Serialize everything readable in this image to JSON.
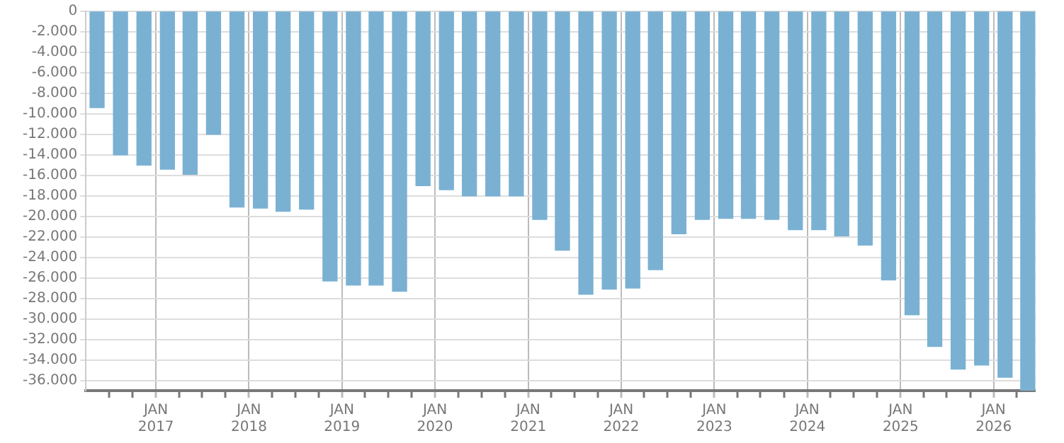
{
  "chart_data": {
    "type": "bar",
    "color": "#7ab1d3",
    "x": [
      "2016-05-15",
      "2016-08-15",
      "2016-11-15",
      "2017-02-15",
      "2017-05-15",
      "2017-08-15",
      "2017-11-15",
      "2018-02-15",
      "2018-05-15",
      "2018-08-15",
      "2018-11-15",
      "2019-02-15",
      "2019-05-15",
      "2019-08-15",
      "2019-11-15",
      "2020-02-15",
      "2020-05-15",
      "2020-08-15",
      "2020-11-15",
      "2021-02-15",
      "2021-05-15",
      "2021-08-15",
      "2021-11-15",
      "2022-02-15",
      "2022-05-15",
      "2022-08-15",
      "2022-11-15",
      "2023-02-15",
      "2023-05-15",
      "2023-08-15",
      "2023-11-15",
      "2024-02-15",
      "2024-05-15",
      "2024-08-15",
      "2024-11-15",
      "2025-02-15",
      "2025-05-15",
      "2025-08-15",
      "2025-11-15",
      "2026-02-15",
      "2026-05-15"
    ],
    "values": [
      -9400,
      -14000,
      -15000,
      -15400,
      -15900,
      -12000,
      -19100,
      -19200,
      -19500,
      -19300,
      -26300,
      -26700,
      -26700,
      -27300,
      -17000,
      -17400,
      -18000,
      -18000,
      -18000,
      -20300,
      -23300,
      -27600,
      -27100,
      -27000,
      -25200,
      -21700,
      -20300,
      -20200,
      -20200,
      -20300,
      -21300,
      -21300,
      -21900,
      -22800,
      -26200,
      -29600,
      -32700,
      -34900,
      -34500,
      -35700,
      -37000
    ],
    "xlim": [
      "2016-04-01",
      "2026-06-15"
    ],
    "xticks": [
      {
        "value": "2016-07-01",
        "label": null
      },
      {
        "value": "2016-10-01",
        "label": null
      },
      {
        "value": "2017-01-01",
        "label": "JAN 2017"
      },
      {
        "value": "2017-04-01",
        "label": null
      },
      {
        "value": "2017-07-01",
        "label": null
      },
      {
        "value": "2017-10-01",
        "label": null
      },
      {
        "value": "2018-01-01",
        "label": "JAN 2018"
      },
      {
        "value": "2018-04-01",
        "label": null
      },
      {
        "value": "2018-07-01",
        "label": null
      },
      {
        "value": "2018-10-01",
        "label": null
      },
      {
        "value": "2019-01-01",
        "label": "JAN 2019"
      },
      {
        "value": "2019-04-01",
        "label": null
      },
      {
        "value": "2019-07-01",
        "label": null
      },
      {
        "value": "2019-10-01",
        "label": null
      },
      {
        "value": "2020-01-01",
        "label": "JAN 2020"
      },
      {
        "value": "2020-04-01",
        "label": null
      },
      {
        "value": "2020-07-01",
        "label": null
      },
      {
        "value": "2020-10-01",
        "label": null
      },
      {
        "value": "2021-01-01",
        "label": "JAN 2021"
      },
      {
        "value": "2021-04-01",
        "label": null
      },
      {
        "value": "2021-07-01",
        "label": null
      },
      {
        "value": "2021-10-01",
        "label": null
      },
      {
        "value": "2022-01-01",
        "label": "JAN 2022"
      },
      {
        "value": "2022-04-01",
        "label": null
      },
      {
        "value": "2022-07-01",
        "label": null
      },
      {
        "value": "2022-10-01",
        "label": null
      },
      {
        "value": "2023-01-01",
        "label": "JAN 2023"
      },
      {
        "value": "2023-04-01",
        "label": null
      },
      {
        "value": "2023-07-01",
        "label": null
      },
      {
        "value": "2023-10-01",
        "label": null
      },
      {
        "value": "2024-01-01",
        "label": "JAN 2024"
      },
      {
        "value": "2024-04-01",
        "label": null
      },
      {
        "value": "2024-07-01",
        "label": null
      },
      {
        "value": "2024-10-01",
        "label": null
      },
      {
        "value": "2025-01-01",
        "label": "JAN 2025"
      },
      {
        "value": "2025-04-01",
        "label": null
      },
      {
        "value": "2025-07-01",
        "label": null
      },
      {
        "value": "2025-10-01",
        "label": null
      },
      {
        "value": "2026-01-01",
        "label": "JAN 2026"
      },
      {
        "value": "2026-04-01",
        "label": null
      }
    ],
    "ylim": [
      -37000,
      0
    ],
    "yticks": [
      0,
      {
        "value": -2000,
        "label": "-2.000"
      },
      {
        "value": -4000,
        "label": "-4.000"
      },
      {
        "value": -6000,
        "label": "-6.000"
      },
      {
        "value": -8000,
        "label": "-8.000"
      },
      {
        "value": -10000,
        "label": "-10.000"
      },
      {
        "value": -12000,
        "label": "-12.000"
      },
      {
        "value": -14000,
        "label": "-14.000"
      },
      {
        "value": -16000,
        "label": "-16.000"
      },
      {
        "value": -18000,
        "label": "-18.000"
      },
      {
        "value": -20000,
        "label": "-20.000"
      },
      {
        "value": -22000,
        "label": "-22.000"
      },
      {
        "value": -24000,
        "label": "-24.000"
      },
      {
        "value": -26000,
        "label": "-26.000"
      },
      {
        "value": -28000,
        "label": "-28.000"
      },
      {
        "value": -30000,
        "label": "-30.000"
      },
      {
        "value": -32000,
        "label": "-32.000"
      },
      {
        "value": -34000,
        "label": "-34.000"
      },
      {
        "value": -36000,
        "label": "-36.000"
      }
    ],
    "grid": true,
    "legend": false
  }
}
